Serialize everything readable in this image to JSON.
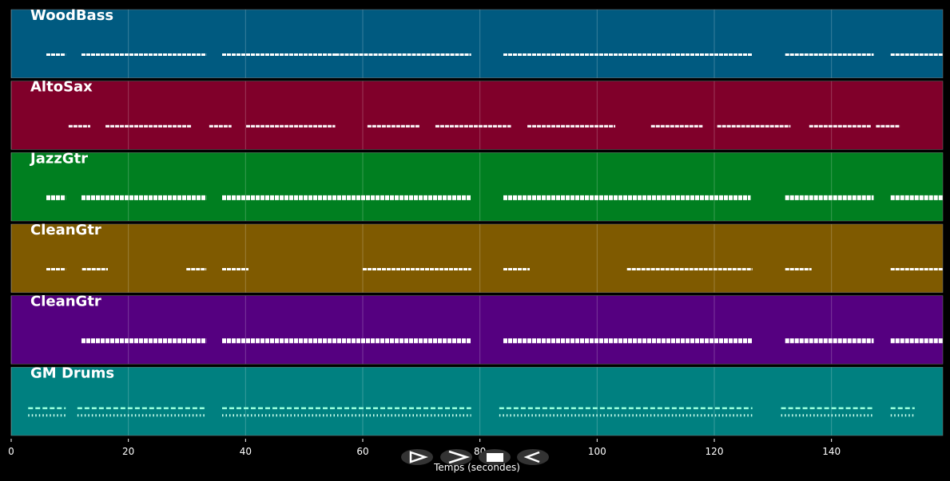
{
  "chart_data": {
    "type": "timeline",
    "xlabel": "Temps (secondes)",
    "xlim": [
      0,
      159
    ],
    "xticks": [
      0,
      20,
      40,
      60,
      80,
      100,
      120,
      140
    ],
    "grid": true,
    "series": [
      {
        "name": "WoodBass",
        "color": "#005a80",
        "segments": [
          [
            6.0,
            9.3
          ],
          [
            12.0,
            33.3
          ],
          [
            36.0,
            55.3
          ],
          [
            55.3,
            78.5
          ],
          [
            84.0,
            126.5
          ],
          [
            132.1,
            147.2
          ],
          [
            150.1,
            159
          ]
        ]
      },
      {
        "name": "AltoSax",
        "color": "#80002a",
        "segments": [
          [
            9.8,
            13.5
          ],
          [
            16.1,
            30.8
          ],
          [
            33.8,
            37.6
          ],
          [
            40.1,
            55.3
          ],
          [
            60.8,
            69.7
          ],
          [
            72.4,
            85.3
          ],
          [
            88.1,
            103.1
          ],
          [
            109.2,
            118.0
          ],
          [
            120.5,
            133.0
          ],
          [
            136.2,
            146.7
          ],
          [
            147.6,
            151.7
          ]
        ]
      },
      {
        "name": "JazzGtr",
        "color": "#007f20",
        "segments": [
          [
            6.0,
            9.3
          ],
          [
            12.0,
            33.3
          ],
          [
            36.0,
            78.5
          ],
          [
            84.0,
            126.2
          ],
          [
            132.1,
            147.2
          ],
          [
            150.1,
            159
          ]
        ]
      },
      {
        "name": "CleanGtr",
        "color": "#7f5a00",
        "segments": [
          [
            6.0,
            9.3
          ],
          [
            12.1,
            16.5
          ],
          [
            29.9,
            33.3
          ],
          [
            36.0,
            40.5
          ],
          [
            60.0,
            78.5
          ],
          [
            84.0,
            88.5
          ],
          [
            105.1,
            126.5
          ],
          [
            132.1,
            136.6
          ],
          [
            150.1,
            159
          ]
        ]
      },
      {
        "name": "CleanGtr",
        "color": "#550080",
        "segments": [
          [
            12.0,
            33.3
          ],
          [
            36.0,
            78.5
          ],
          [
            84.0,
            126.5
          ],
          [
            132.1,
            147.2
          ],
          [
            150.1,
            159
          ]
        ]
      },
      {
        "name": "GM Drums",
        "color": "#008080",
        "segments": [
          [
            2.9,
            9.3
          ],
          [
            11.3,
            33.3
          ],
          [
            36.0,
            78.5
          ],
          [
            83.3,
            126.5
          ],
          [
            131.4,
            147.2
          ],
          [
            150.1,
            154.2
          ]
        ]
      }
    ]
  }
}
